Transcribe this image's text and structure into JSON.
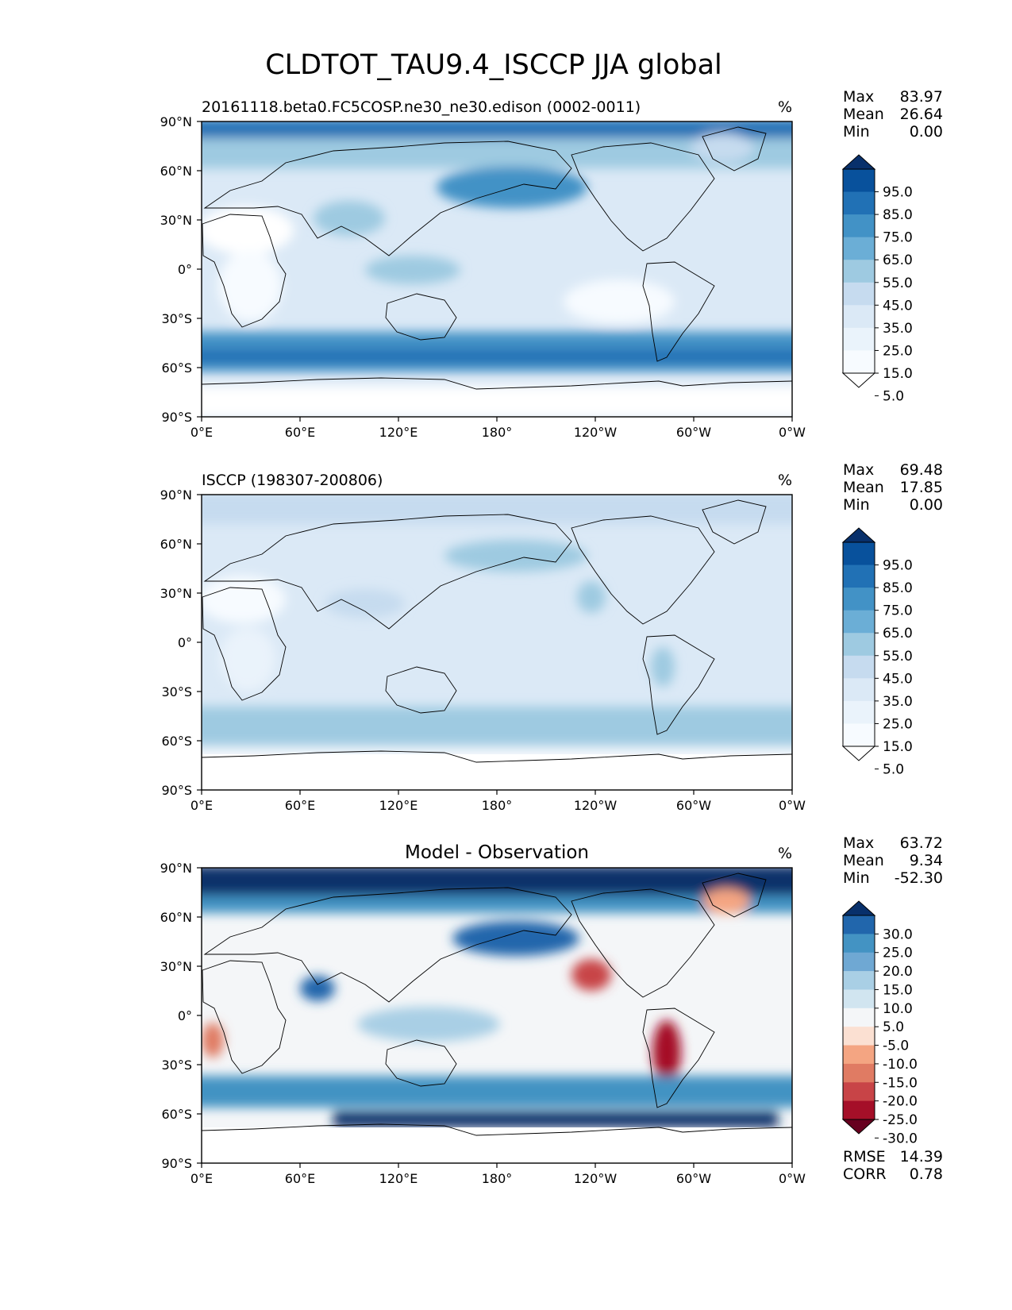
{
  "figure": {
    "title": "CLDTOT_TAU9.4_ISCCP JJA global"
  },
  "chart_data": [
    {
      "type": "heatmap",
      "id": "test",
      "title": "20161118.beta0.FC5COSP.ne30_ne30.edison (0002-0011)",
      "center_title": "",
      "units": "%",
      "stats": [
        {
          "label": "Max",
          "value": "83.97"
        },
        {
          "label": "Mean",
          "value": "26.64"
        },
        {
          "label": "Min",
          "value": "0.00"
        }
      ],
      "colorbar_ticks": [
        "95.0",
        "85.0",
        "75.0",
        "65.0",
        "55.0",
        "45.0",
        "35.0",
        "25.0",
        "15.0",
        "5.0"
      ],
      "colorbar_colors": [
        "#08306b",
        "#08519c",
        "#2171b5",
        "#4292c6",
        "#6baed6",
        "#9ecae1",
        "#c6dbef",
        "#dbe9f6",
        "#eaf3fb",
        "#f7fbff",
        "#ffffff"
      ],
      "x_ticks": [
        "0°E",
        "60°E",
        "120°E",
        "180°",
        "120°W",
        "60°W",
        "0°W"
      ],
      "y_ticks": [
        "90°N",
        "60°N",
        "30°N",
        "0°",
        "30°S",
        "60°S",
        "90°S"
      ],
      "xlim": [
        0,
        360
      ],
      "ylim": [
        -90,
        90
      ]
    },
    {
      "type": "heatmap",
      "id": "reference",
      "title": "ISCCP (198307-200806)",
      "center_title": "",
      "units": "%",
      "stats": [
        {
          "label": "Max",
          "value": "69.48"
        },
        {
          "label": "Mean",
          "value": "17.85"
        },
        {
          "label": "Min",
          "value": "0.00"
        }
      ],
      "colorbar_ticks": [
        "95.0",
        "85.0",
        "75.0",
        "65.0",
        "55.0",
        "45.0",
        "35.0",
        "25.0",
        "15.0",
        "5.0"
      ],
      "colorbar_colors": [
        "#08306b",
        "#08519c",
        "#2171b5",
        "#4292c6",
        "#6baed6",
        "#9ecae1",
        "#c6dbef",
        "#dbe9f6",
        "#eaf3fb",
        "#f7fbff",
        "#ffffff"
      ],
      "x_ticks": [
        "0°E",
        "60°E",
        "120°E",
        "180°",
        "120°W",
        "60°W",
        "0°W"
      ],
      "y_ticks": [
        "90°N",
        "60°N",
        "30°N",
        "0°",
        "30°S",
        "60°S",
        "90°S"
      ],
      "xlim": [
        0,
        360
      ],
      "ylim": [
        -90,
        90
      ]
    },
    {
      "type": "heatmap",
      "id": "difference",
      "title": "",
      "center_title": "Model - Observation",
      "units": "%",
      "stats": [
        {
          "label": "Max",
          "value": "63.72"
        },
        {
          "label": "Mean",
          "value": "9.34"
        },
        {
          "label": "Min",
          "value": "-52.30"
        }
      ],
      "extra_stats": [
        {
          "label": "RMSE",
          "value": "14.39"
        },
        {
          "label": "CORR",
          "value": "0.78"
        }
      ],
      "colorbar_ticks": [
        "30.0",
        "25.0",
        "20.0",
        "15.0",
        "10.0",
        "5.0",
        "-5.0",
        "-10.0",
        "-15.0",
        "-20.0",
        "-25.0",
        "-30.0"
      ],
      "colorbar_colors": [
        "#08306b",
        "#2166ac",
        "#4393c3",
        "#6fa8d3",
        "#a9cfe5",
        "#d1e5f0",
        "#f4f6f8",
        "#fbe0d2",
        "#f4a582",
        "#e07b63",
        "#c84447",
        "#a50f28",
        "#67001f"
      ],
      "x_ticks": [
        "0°E",
        "60°E",
        "120°E",
        "180°",
        "120°W",
        "60°W",
        "0°W"
      ],
      "y_ticks": [
        "90°N",
        "60°N",
        "30°N",
        "0°",
        "30°S",
        "60°S",
        "90°S"
      ],
      "xlim": [
        0,
        360
      ],
      "ylim": [
        -90,
        90
      ]
    }
  ]
}
